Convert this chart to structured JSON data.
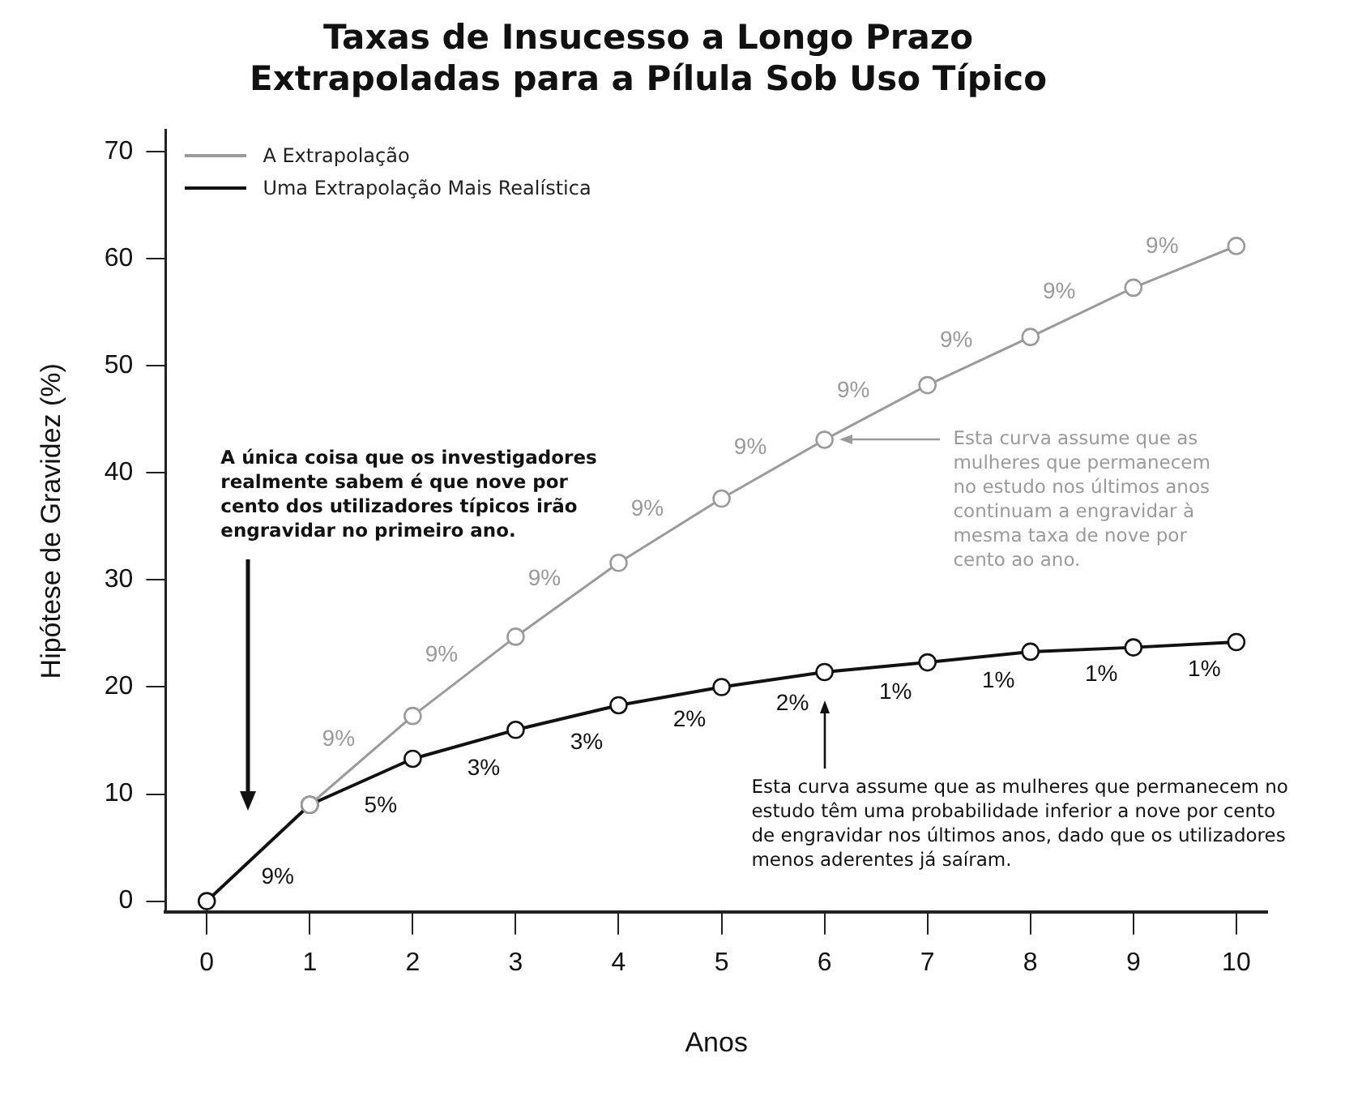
{
  "chart_data": {
    "type": "line",
    "title": "Taxas de Insucesso a Longo Prazo\nExtrapoladas para a Pílula Sob Uso Típico",
    "xlabel": "Anos",
    "ylabel": "Hipótese de Gravidez (%)",
    "x": [
      0,
      1,
      2,
      3,
      4,
      5,
      6,
      7,
      8,
      9,
      10
    ],
    "series": [
      {
        "name": "A Extrapolação",
        "color": "#9a9a9a",
        "values": [
          null,
          9,
          17.3,
          24.7,
          31.6,
          37.6,
          43.1,
          48.2,
          52.7,
          57.3,
          61.2
        ]
      },
      {
        "name": "Uma Extrapolação Mais Realística",
        "color": "#111111",
        "values": [
          0,
          9,
          13.3,
          16,
          18.3,
          20,
          21.4,
          22.3,
          23.3,
          23.7,
          24.2
        ]
      }
    ],
    "xlim": [
      -0.4,
      10.3
    ],
    "ylim": [
      -1,
      72
    ],
    "xticks": [
      0,
      1,
      2,
      3,
      4,
      5,
      6,
      7,
      8,
      9,
      10
    ],
    "yticks": [
      0,
      10,
      20,
      30,
      40,
      50,
      60,
      70
    ],
    "grid": false,
    "legend": "top left",
    "marker": "circle",
    "line_style": "solid",
    "annotations": [
      "A única coisa que os investigadores realmente sabem é que nove por cento dos utilizadores típicos irão engravidar no primeiro ano.",
      "Esta curva assume que as mulheres que permanecem no estudo nos últimos anos continuam a engravidar à mesma taxa de nove por cento ao ano.",
      "Esta curva assume que as mulheres que permanecem no estudo têm uma probabilidade inferior a nove por cento de engravidar nos últimos anos, dado que os utilizadores menos aderentes já saíram.",
      {
        "text": "9%",
        "x": 1.5,
        "y": 13.15
      },
      {
        "text": "9%",
        "x": 2.5,
        "y": 21
      },
      {
        "text": "9%",
        "x": 3.5,
        "y": 28.15
      },
      {
        "text": "9%",
        "x": 4.5,
        "y": 34.6
      },
      {
        "text": "9%",
        "x": 5.5,
        "y": 40.35
      },
      {
        "text": "9%",
        "x": 6.5,
        "y": 45.65
      },
      {
        "text": "9%",
        "x": 7.5,
        "y": 50.45
      },
      {
        "text": "9%",
        "x": 8.5,
        "y": 55
      },
      {
        "text": "9%",
        "x": 9.5,
        "y": 59.25
      },
      {
        "text": "9%",
        "x": 0.5,
        "y": 4.5
      },
      {
        "text": "5%",
        "x": 1.5,
        "y": 11.15
      },
      {
        "text": "3%",
        "x": 2.5,
        "y": 14.65
      },
      {
        "text": "3%",
        "x": 3.5,
        "y": 17.15
      },
      {
        "text": "2%",
        "x": 4.5,
        "y": 19.15
      },
      {
        "text": "2%",
        "x": 5.5,
        "y": 20.7
      },
      {
        "text": "1%",
        "x": 6.5,
        "y": 21.85
      },
      {
        "text": "1%",
        "x": 7.5,
        "y": 22.8
      },
      {
        "text": "1%",
        "x": 8.5,
        "y": 23.5
      },
      {
        "text": "1%",
        "x": 9.5,
        "y": 23.95
      }
    ]
  }
}
